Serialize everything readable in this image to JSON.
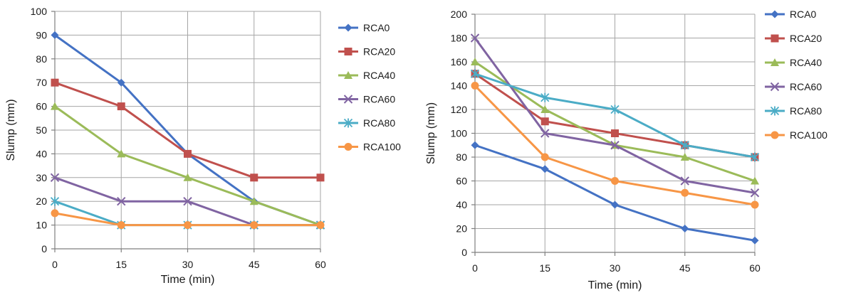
{
  "chart_data": [
    {
      "type": "line",
      "xlabel": "Time (min)",
      "ylabel": "Slump (mm)",
      "x": [
        0,
        15,
        30,
        45,
        60
      ],
      "xlim": [
        0,
        60
      ],
      "ylim": [
        0,
        100
      ],
      "x_ticks": [
        "0",
        "15",
        "30",
        "45",
        "60"
      ],
      "y_ticks": [
        "0",
        "10",
        "20",
        "30",
        "40",
        "50",
        "60",
        "70",
        "80",
        "90",
        "100"
      ],
      "grid": true,
      "legend_position": "right",
      "series": [
        {
          "name": "RCA0",
          "values": [
            90,
            70,
            40,
            20,
            10
          ],
          "color": "#4472C4",
          "marker": "diamond"
        },
        {
          "name": "RCA20",
          "values": [
            70,
            60,
            40,
            30,
            30
          ],
          "color": "#C0504D",
          "marker": "square"
        },
        {
          "name": "RCA40",
          "values": [
            60,
            40,
            30,
            20,
            10
          ],
          "color": "#9BBB59",
          "marker": "triangle"
        },
        {
          "name": "RCA60",
          "values": [
            30,
            20,
            20,
            10,
            10
          ],
          "color": "#8064A2",
          "marker": "x"
        },
        {
          "name": "RCA80",
          "values": [
            20,
            10,
            10,
            10,
            10
          ],
          "color": "#4BACC6",
          "marker": "star"
        },
        {
          "name": "RCA100",
          "values": [
            15,
            10,
            10,
            10,
            10
          ],
          "color": "#F79646",
          "marker": "circle"
        }
      ]
    },
    {
      "type": "line",
      "xlabel": "Time  (min)",
      "ylabel": "Slump (mm)",
      "x": [
        0,
        15,
        30,
        45,
        60
      ],
      "xlim": [
        0,
        60
      ],
      "ylim": [
        0,
        200
      ],
      "x_ticks": [
        "0",
        "15",
        "30",
        "45",
        "60"
      ],
      "y_ticks": [
        "0",
        "20",
        "40",
        "60",
        "80",
        "100",
        "120",
        "140",
        "160",
        "180",
        "200"
      ],
      "grid": true,
      "legend_position": "right",
      "series": [
        {
          "name": "RCA0",
          "values": [
            90,
            70,
            40,
            20,
            10
          ],
          "color": "#4472C4",
          "marker": "diamond"
        },
        {
          "name": "RCA20",
          "values": [
            150,
            110,
            100,
            90,
            80
          ],
          "color": "#C0504D",
          "marker": "square"
        },
        {
          "name": "RCA40",
          "values": [
            160,
            120,
            90,
            80,
            60
          ],
          "color": "#9BBB59",
          "marker": "triangle"
        },
        {
          "name": "RCA60",
          "values": [
            180,
            100,
            90,
            60,
            50
          ],
          "color": "#8064A2",
          "marker": "x"
        },
        {
          "name": "RCA80",
          "values": [
            150,
            130,
            120,
            90,
            80
          ],
          "color": "#4BACC6",
          "marker": "star"
        },
        {
          "name": "RCA100",
          "values": [
            140,
            80,
            60,
            50,
            40
          ],
          "color": "#F79646",
          "marker": "circle"
        }
      ]
    }
  ]
}
